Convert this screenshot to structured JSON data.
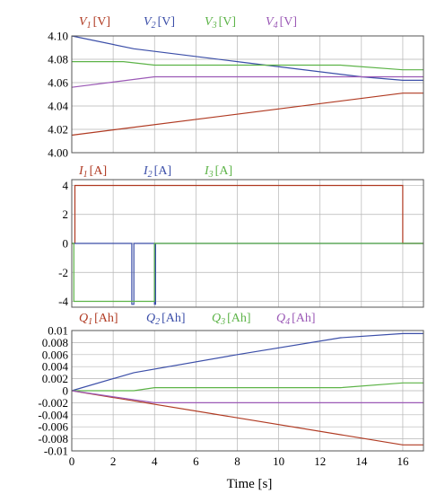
{
  "colors": {
    "red": "#b03a22",
    "blue": "#3b4ea8",
    "green": "#5cb347",
    "purple": "#9b59b6"
  },
  "xlabel": "Time [s]",
  "xticks": [
    "0",
    "2",
    "4",
    "6",
    "8",
    "10",
    "12",
    "14",
    "16"
  ],
  "chart_data": [
    {
      "type": "line",
      "xlim": [
        0,
        17
      ],
      "ylim": [
        4.0,
        4.1
      ],
      "yticks": [
        "4.10",
        "4.08",
        "4.06",
        "4.04",
        "4.02",
        "4.00"
      ],
      "legend": [
        {
          "sym": "V",
          "sub": "1",
          "unit": "[V]",
          "color": "#b03a22"
        },
        {
          "sym": "V",
          "sub": "2",
          "unit": "[V]",
          "color": "#3b4ea8"
        },
        {
          "sym": "V",
          "sub": "3",
          "unit": "[V]",
          "color": "#5cb347"
        },
        {
          "sym": "V",
          "sub": "4",
          "unit": "[V]",
          "color": "#9b59b6"
        }
      ],
      "series": [
        {
          "color": "#b03a22",
          "points": [
            [
              0,
              4.015
            ],
            [
              16,
              4.051
            ],
            [
              17,
              4.051
            ]
          ]
        },
        {
          "color": "#3b4ea8",
          "points": [
            [
              0,
              4.1
            ],
            [
              3,
              4.089
            ],
            [
              8,
              4.078
            ],
            [
              14,
              4.065
            ],
            [
              16,
              4.062
            ],
            [
              17,
              4.062
            ]
          ]
        },
        {
          "color": "#5cb347",
          "points": [
            [
              0,
              4.078
            ],
            [
              2.5,
              4.078
            ],
            [
              4,
              4.075
            ],
            [
              13,
              4.075
            ],
            [
              16,
              4.071
            ],
            [
              17,
              4.071
            ]
          ]
        },
        {
          "color": "#9b59b6",
          "points": [
            [
              0,
              4.056
            ],
            [
              4,
              4.065
            ],
            [
              17,
              4.065
            ]
          ]
        }
      ]
    },
    {
      "type": "line",
      "xlim": [
        0,
        17
      ],
      "ylim": [
        -4.4,
        4.4
      ],
      "yticks": [
        "4",
        "2",
        "0",
        "-2",
        "-4"
      ],
      "legend": [
        {
          "sym": "I",
          "sub": "1",
          "unit": "[A]",
          "color": "#b03a22"
        },
        {
          "sym": "I",
          "sub": "2",
          "unit": "[A]",
          "color": "#3b4ea8"
        },
        {
          "sym": "I",
          "sub": "3",
          "unit": "[A]",
          "color": "#5cb347"
        }
      ],
      "series": [
        {
          "color": "#b03a22",
          "points": [
            [
              0,
              0
            ],
            [
              0.15,
              0
            ],
            [
              0.15,
              4
            ],
            [
              16,
              4
            ],
            [
              16,
              0
            ],
            [
              17,
              0
            ]
          ]
        },
        {
          "color": "#3b4ea8",
          "points": [
            [
              0,
              0
            ],
            [
              2.9,
              0
            ],
            [
              2.9,
              -4.2
            ],
            [
              3,
              -4.2
            ],
            [
              3,
              0
            ],
            [
              4,
              0
            ],
            [
              4,
              -4.2
            ],
            [
              4.05,
              -4.2
            ],
            [
              4.05,
              0
            ],
            [
              17,
              0
            ]
          ]
        },
        {
          "color": "#5cb347",
          "points": [
            [
              0,
              0
            ],
            [
              0.1,
              0
            ],
            [
              0.1,
              -4
            ],
            [
              4,
              -4
            ],
            [
              4,
              0
            ],
            [
              17,
              0
            ]
          ]
        }
      ]
    },
    {
      "type": "line",
      "xlim": [
        0,
        17
      ],
      "ylim": [
        -0.01,
        0.01
      ],
      "yticks": [
        "0.01",
        "0.008",
        "0.006",
        "0.004",
        "0.002",
        "0",
        "-0.002",
        "-0.004",
        "-0.006",
        "-0.008",
        "-0.01"
      ],
      "legend": [
        {
          "sym": "Q",
          "sub": "1",
          "unit": "[Ah]",
          "color": "#b03a22"
        },
        {
          "sym": "Q",
          "sub": "2",
          "unit": "[Ah]",
          "color": "#3b4ea8"
        },
        {
          "sym": "Q",
          "sub": "3",
          "unit": "[Ah]",
          "color": "#5cb347"
        },
        {
          "sym": "Q",
          "sub": "4",
          "unit": "[Ah]",
          "color": "#9b59b6"
        }
      ],
      "series": [
        {
          "color": "#b03a22",
          "points": [
            [
              0,
              0
            ],
            [
              16,
              -0.009
            ],
            [
              17,
              -0.009
            ]
          ]
        },
        {
          "color": "#3b4ea8",
          "points": [
            [
              0,
              0
            ],
            [
              3,
              0.003
            ],
            [
              8,
              0.006
            ],
            [
              13,
              0.0088
            ],
            [
              16,
              0.0095
            ],
            [
              17,
              0.0095
            ]
          ]
        },
        {
          "color": "#5cb347",
          "points": [
            [
              0,
              0
            ],
            [
              3,
              0
            ],
            [
              4,
              0.0005
            ],
            [
              13,
              0.0005
            ],
            [
              16,
              0.0013
            ],
            [
              17,
              0.0013
            ]
          ]
        },
        {
          "color": "#9b59b6",
          "points": [
            [
              0,
              0
            ],
            [
              4,
              -0.002
            ],
            [
              17,
              -0.002
            ]
          ]
        }
      ]
    }
  ]
}
